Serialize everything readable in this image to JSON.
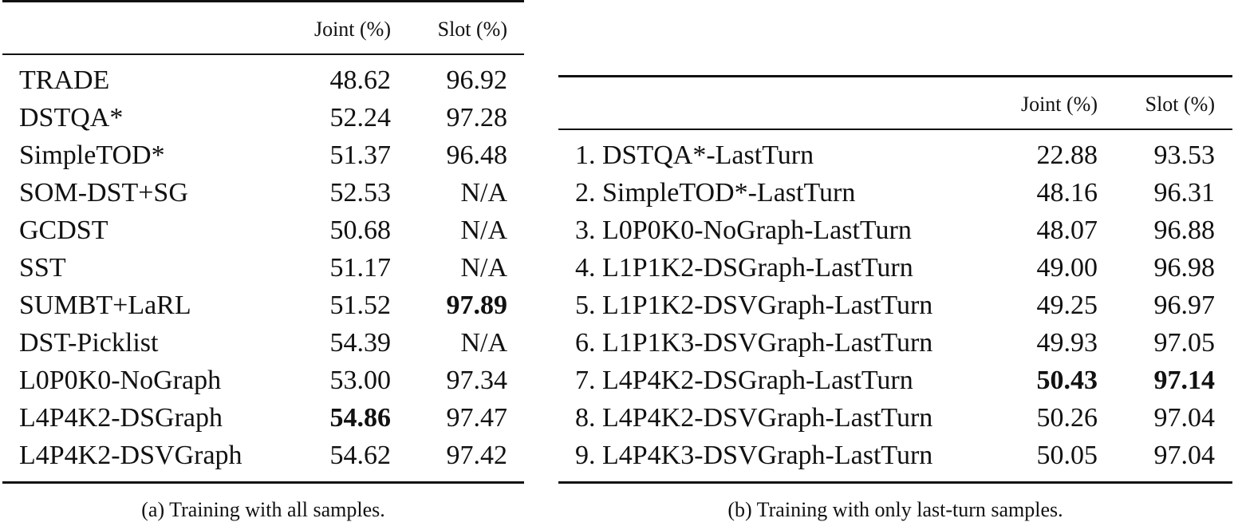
{
  "table_a": {
    "caption": "(a) Training with all samples.",
    "columns": [
      "",
      "Joint (%)",
      "Slot (%)"
    ],
    "rows": [
      {
        "name": "TRADE",
        "joint": "48.62",
        "slot": "96.92",
        "joint_bold": false,
        "slot_bold": false
      },
      {
        "name": "DSTQA*",
        "joint": "52.24",
        "slot": "97.28",
        "joint_bold": false,
        "slot_bold": false
      },
      {
        "name": "SimpleTOD*",
        "joint": "51.37",
        "slot": "96.48",
        "joint_bold": false,
        "slot_bold": false
      },
      {
        "name": "SOM-DST+SG",
        "joint": "52.53",
        "slot": "N/A",
        "joint_bold": false,
        "slot_bold": false
      },
      {
        "name": "GCDST",
        "joint": "50.68",
        "slot": "N/A",
        "joint_bold": false,
        "slot_bold": false
      },
      {
        "name": "SST",
        "joint": "51.17",
        "slot": "N/A",
        "joint_bold": false,
        "slot_bold": false
      },
      {
        "name": "SUMBT+LaRL",
        "joint": "51.52",
        "slot": "97.89",
        "joint_bold": false,
        "slot_bold": true
      },
      {
        "name": "DST-Picklist",
        "joint": "54.39",
        "slot": "N/A",
        "joint_bold": false,
        "slot_bold": false
      },
      {
        "name": "L0P0K0-NoGraph",
        "joint": "53.00",
        "slot": "97.34",
        "joint_bold": false,
        "slot_bold": false
      },
      {
        "name": "L4P4K2-DSGraph",
        "joint": "54.86",
        "slot": "97.47",
        "joint_bold": true,
        "slot_bold": false
      },
      {
        "name": "L4P4K2-DSVGraph",
        "joint": "54.62",
        "slot": "97.42",
        "joint_bold": false,
        "slot_bold": false
      }
    ]
  },
  "table_b": {
    "caption": "(b) Training with only last-turn samples.",
    "columns": [
      "",
      "Joint (%)",
      "Slot (%)"
    ],
    "rows": [
      {
        "name": "1. DSTQA*-LastTurn",
        "joint": "22.88",
        "slot": "93.53",
        "joint_bold": false,
        "slot_bold": false
      },
      {
        "name": "2. SimpleTOD*-LastTurn",
        "joint": "48.16",
        "slot": "96.31",
        "joint_bold": false,
        "slot_bold": false
      },
      {
        "name": "3. L0P0K0-NoGraph-LastTurn",
        "joint": "48.07",
        "slot": "96.88",
        "joint_bold": false,
        "slot_bold": false
      },
      {
        "name": "4. L1P1K2-DSGraph-LastTurn",
        "joint": "49.00",
        "slot": "96.98",
        "joint_bold": false,
        "slot_bold": false
      },
      {
        "name": "5. L1P1K2-DSVGraph-LastTurn",
        "joint": "49.25",
        "slot": "96.97",
        "joint_bold": false,
        "slot_bold": false
      },
      {
        "name": "6. L1P1K3-DSVGraph-LastTurn",
        "joint": "49.93",
        "slot": "97.05",
        "joint_bold": false,
        "slot_bold": false
      },
      {
        "name": "7. L4P4K2-DSGraph-LastTurn",
        "joint": "50.43",
        "slot": "97.14",
        "joint_bold": true,
        "slot_bold": true
      },
      {
        "name": "8. L4P4K2-DSVGraph-LastTurn",
        "joint": "50.26",
        "slot": "97.04",
        "joint_bold": false,
        "slot_bold": false
      },
      {
        "name": "9. L4P4K3-DSVGraph-LastTurn",
        "joint": "50.05",
        "slot": "97.04",
        "joint_bold": false,
        "slot_bold": false
      }
    ]
  }
}
